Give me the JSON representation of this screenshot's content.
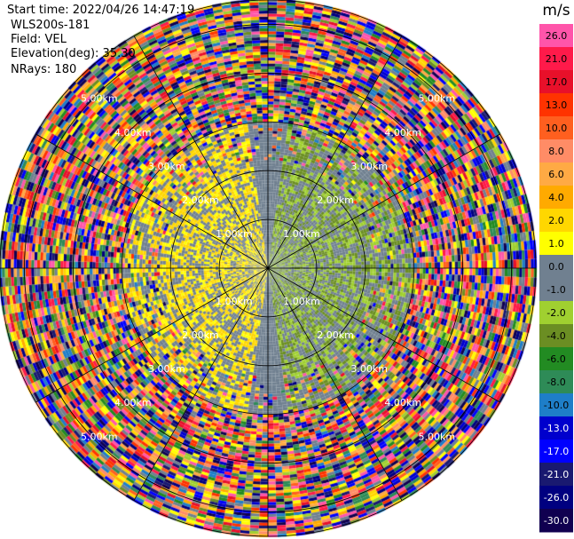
{
  "header": {
    "start_time": "Start time: 2022/04/26 14:47:19",
    "instrument": "WLS200s-181",
    "field": "Field: VEL",
    "elevation": "Elevation(deg): 35.30",
    "nrays": "NRays: 180"
  },
  "chart_data": {
    "type": "heatmap",
    "projection": "polar-ppi",
    "field": "VEL",
    "units": "m/s",
    "n_rays": 180,
    "max_range_km": 5.5,
    "range_ring_labels": [
      "1.00km",
      "2.00km",
      "3.00km",
      "4.00km",
      "5.00km"
    ],
    "range_rings_km": [
      1,
      2,
      3,
      4,
      5
    ],
    "spoke_angles_deg": [
      0,
      30,
      60,
      90,
      120,
      150,
      180,
      210,
      240,
      270,
      300,
      330
    ],
    "colorbar": {
      "label": "m/s",
      "tick_labels": [
        "26.0",
        "21.0",
        "17.0",
        "13.0",
        "10.0",
        "8.0",
        "6.0",
        "4.0",
        "2.0",
        "1.0",
        "0.0",
        "-1.0",
        "-2.0",
        "-4.0",
        "-6.0",
        "-8.0",
        "-10.0",
        "-13.0",
        "-17.0",
        "-21.0",
        "-26.0",
        "-30.0"
      ],
      "colors": [
        "#ff55aa",
        "#ff1a4a",
        "#e8102a",
        "#ff3300",
        "#ff5f1f",
        "#ff8c66",
        "#ffaa44",
        "#ffaa00",
        "#ffd700",
        "#ffff00",
        "#708090",
        "#708090",
        "#a0d030",
        "#6b8e23",
        "#228b22",
        "#2e8b57",
        "#1e7ec8",
        "#0000cd",
        "#0000ff",
        "#191970",
        "#000080",
        "#100050"
      ]
    },
    "velocity_pattern": "mostly positive (yellow/orange) toward the west half and negative (green) toward the east half near the center, with noisy high-magnitude values beyond 3 km",
    "colors": {
      "grid": "#000000",
      "background": "#ffffff"
    }
  }
}
